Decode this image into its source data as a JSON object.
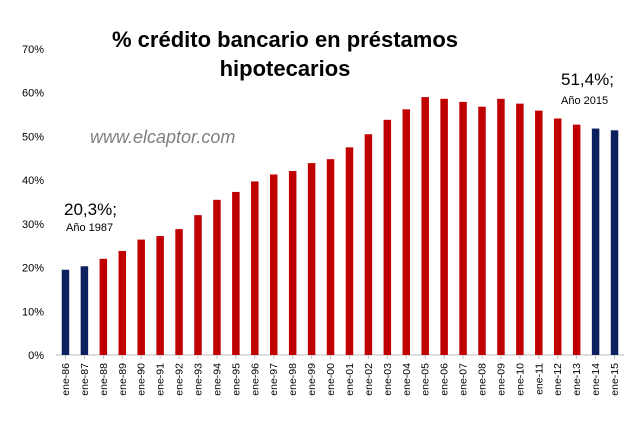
{
  "chart_data": {
    "type": "bar",
    "title_lines": [
      "% crédito bancario en préstamos",
      "hipotecarios"
    ],
    "watermark": "www.elcaptor.com",
    "categories": [
      "ene-86",
      "ene-87",
      "ene-88",
      "ene-89",
      "ene-90",
      "ene-91",
      "ene-92",
      "ene-93",
      "ene-94",
      "ene-95",
      "ene-96",
      "ene-97",
      "ene-98",
      "ene-99",
      "ene-00",
      "ene-01",
      "ene-02",
      "ene-03",
      "ene-04",
      "ene-05",
      "ene-06",
      "ene-07",
      "ene-08",
      "ene-09",
      "ene-10",
      "ene-11",
      "ene-12",
      "ene-13",
      "ene-14",
      "ene-15"
    ],
    "values": [
      19.5,
      20.3,
      22.0,
      23.8,
      26.4,
      27.2,
      28.8,
      32.0,
      35.5,
      37.3,
      39.7,
      41.3,
      42.1,
      43.9,
      44.8,
      47.5,
      50.5,
      53.8,
      56.2,
      59.0,
      58.6,
      57.9,
      56.8,
      58.6,
      57.5,
      55.9,
      54.1,
      52.7,
      51.8,
      51.4
    ],
    "highlight_indices": [
      0,
      1,
      28,
      29
    ],
    "colors": {
      "normal": "#c00000",
      "highlight": "#0c1f5e"
    },
    "ylim": [
      0,
      70
    ],
    "yticks": [
      "0%",
      "10%",
      "20%",
      "30%",
      "40%",
      "50%",
      "60%",
      "70%"
    ],
    "ytick_values": [
      0,
      10,
      20,
      30,
      40,
      50,
      60,
      70
    ],
    "annotations": [
      {
        "value": "20,3%;",
        "label": "Año 1987",
        "index": 1
      },
      {
        "value": "51,4%;",
        "label": "Año 2015",
        "index": 29
      }
    ],
    "grid": false,
    "xlabel": "",
    "ylabel": ""
  }
}
